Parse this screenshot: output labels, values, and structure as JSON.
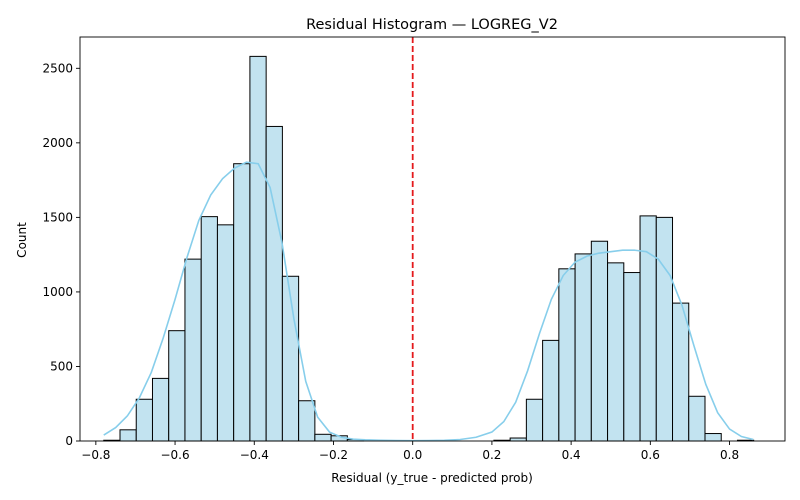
{
  "chart_data": {
    "type": "bar",
    "title": "Residual Histogram — LOGREG_V2",
    "xlabel": "Residual (y_true - predicted prob)",
    "ylabel": "Count",
    "xlim": [
      -0.84,
      0.94
    ],
    "ylim": [
      0,
      2710
    ],
    "xticks": [
      -0.8,
      -0.6,
      -0.4,
      -0.2,
      0.0,
      0.2,
      0.4,
      0.6,
      0.8
    ],
    "xtick_labels": [
      "−0.8",
      "−0.6",
      "−0.4",
      "−0.2",
      "0.0",
      "0.2",
      "0.4",
      "0.6",
      "0.8"
    ],
    "yticks": [
      0,
      500,
      1000,
      1500,
      2000,
      2500
    ],
    "ytick_labels": [
      "0",
      "500",
      "1000",
      "1500",
      "2000",
      "2500"
    ],
    "bin_width": 0.041,
    "bins": [
      {
        "x0": -0.78,
        "count": 5
      },
      {
        "x0": -0.739,
        "count": 75
      },
      {
        "x0": -0.698,
        "count": 280
      },
      {
        "x0": -0.657,
        "count": 420
      },
      {
        "x0": -0.616,
        "count": 740
      },
      {
        "x0": -0.575,
        "count": 1220
      },
      {
        "x0": -0.534,
        "count": 1505
      },
      {
        "x0": -0.493,
        "count": 1450
      },
      {
        "x0": -0.452,
        "count": 1860
      },
      {
        "x0": -0.411,
        "count": 2580
      },
      {
        "x0": -0.37,
        "count": 2110
      },
      {
        "x0": -0.329,
        "count": 1105
      },
      {
        "x0": -0.288,
        "count": 270
      },
      {
        "x0": -0.247,
        "count": 45
      },
      {
        "x0": -0.206,
        "count": 35
      },
      {
        "x0": -0.165,
        "count": 10
      },
      {
        "x0": 0.205,
        "count": 5
      },
      {
        "x0": 0.246,
        "count": 20
      },
      {
        "x0": 0.287,
        "count": 280
      },
      {
        "x0": 0.328,
        "count": 675
      },
      {
        "x0": 0.369,
        "count": 1155
      },
      {
        "x0": 0.41,
        "count": 1255
      },
      {
        "x0": 0.451,
        "count": 1340
      },
      {
        "x0": 0.492,
        "count": 1195
      },
      {
        "x0": 0.533,
        "count": 1130
      },
      {
        "x0": 0.574,
        "count": 1510
      },
      {
        "x0": 0.615,
        "count": 1500
      },
      {
        "x0": 0.656,
        "count": 925
      },
      {
        "x0": 0.697,
        "count": 300
      },
      {
        "x0": 0.738,
        "count": 50
      },
      {
        "x0": 0.82,
        "count": 5
      }
    ],
    "kde": {
      "x": [
        -0.78,
        -0.75,
        -0.72,
        -0.69,
        -0.66,
        -0.63,
        -0.6,
        -0.57,
        -0.54,
        -0.51,
        -0.48,
        -0.45,
        -0.42,
        -0.39,
        -0.36,
        -0.33,
        -0.3,
        -0.27,
        -0.24,
        -0.21,
        -0.18,
        -0.15,
        -0.12,
        -0.08,
        -0.04,
        0.0,
        0.04,
        0.08,
        0.12,
        0.16,
        0.2,
        0.23,
        0.26,
        0.29,
        0.32,
        0.35,
        0.38,
        0.41,
        0.44,
        0.47,
        0.5,
        0.53,
        0.56,
        0.59,
        0.62,
        0.65,
        0.68,
        0.71,
        0.74,
        0.77,
        0.8,
        0.83,
        0.86
      ],
      "y": [
        40,
        90,
        170,
        290,
        460,
        690,
        950,
        1230,
        1480,
        1650,
        1760,
        1830,
        1870,
        1860,
        1700,
        1330,
        820,
        400,
        160,
        60,
        25,
        12,
        8,
        5,
        3,
        2,
        3,
        5,
        10,
        25,
        60,
        130,
        260,
        470,
        720,
        950,
        1110,
        1200,
        1240,
        1260,
        1270,
        1280,
        1280,
        1270,
        1220,
        1110,
        910,
        640,
        380,
        190,
        80,
        30,
        10
      ]
    },
    "reference_line": {
      "x": 0.0,
      "color": "#e41a1c",
      "style": "dashed"
    },
    "colors": {
      "bar_fill": "#c2e3f0",
      "bar_edge": "#000000",
      "kde_line": "#87ceeb"
    },
    "grid": false,
    "legend": "none"
  }
}
